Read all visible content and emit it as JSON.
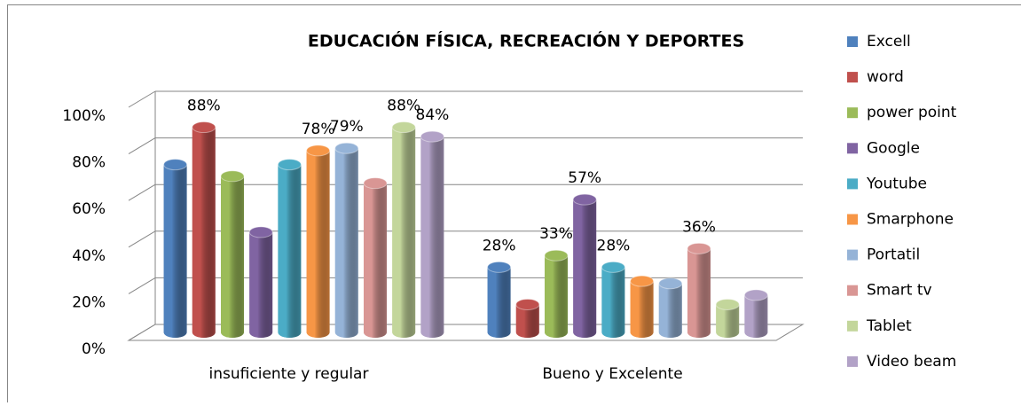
{
  "chart_data": {
    "type": "bar3d",
    "title": "EDUCACIÓN FÍSICA,  RECREACIÓN Y DEPORTES",
    "categories": [
      "insuficiente y  regular",
      "Bueno y Excelente"
    ],
    "ylim": [
      0,
      100
    ],
    "yticks": [
      {
        "value": 0,
        "label": "0%"
      },
      {
        "value": 20,
        "label": "20%"
      },
      {
        "value": 40,
        "label": "40%"
      },
      {
        "value": 60,
        "label": "60%"
      },
      {
        "value": 80,
        "label": "80%"
      },
      {
        "value": 100,
        "label": "100%"
      }
    ],
    "grid": true,
    "legend": "right",
    "series": [
      {
        "name": "Excell",
        "color": "#4f81bd",
        "values": [
          72,
          28
        ],
        "value_labels": [
          null,
          "28%"
        ]
      },
      {
        "name": "word",
        "color": "#c0504d",
        "values": [
          88,
          12
        ],
        "value_labels": [
          "88%",
          null
        ]
      },
      {
        "name": "power point",
        "color": "#9bbb59",
        "values": [
          67,
          33
        ],
        "value_labels": [
          null,
          "33%"
        ]
      },
      {
        "name": "Google",
        "color": "#8064a2",
        "values": [
          43,
          57
        ],
        "value_labels": [
          null,
          "57%"
        ]
      },
      {
        "name": "Youtube",
        "color": "#4bacc6",
        "values": [
          72,
          28
        ],
        "value_labels": [
          null,
          "28%"
        ]
      },
      {
        "name": "Smarphone",
        "color": "#f79646",
        "values": [
          78,
          22
        ],
        "value_labels": [
          "78%",
          null
        ]
      },
      {
        "name": "Portatil",
        "color": "#95b3d7",
        "values": [
          79,
          21
        ],
        "value_labels": [
          "79%",
          null
        ]
      },
      {
        "name": "Smart tv",
        "color": "#d99694",
        "values": [
          64,
          36
        ],
        "value_labels": [
          null,
          "36%"
        ]
      },
      {
        "name": "Tablet",
        "color": "#c3d69b",
        "values": [
          88,
          12
        ],
        "value_labels": [
          "88%",
          null
        ]
      },
      {
        "name": "Video beam",
        "color": "#b2a2c7",
        "values": [
          84,
          16
        ],
        "value_labels": [
          "84%",
          null
        ]
      }
    ]
  }
}
